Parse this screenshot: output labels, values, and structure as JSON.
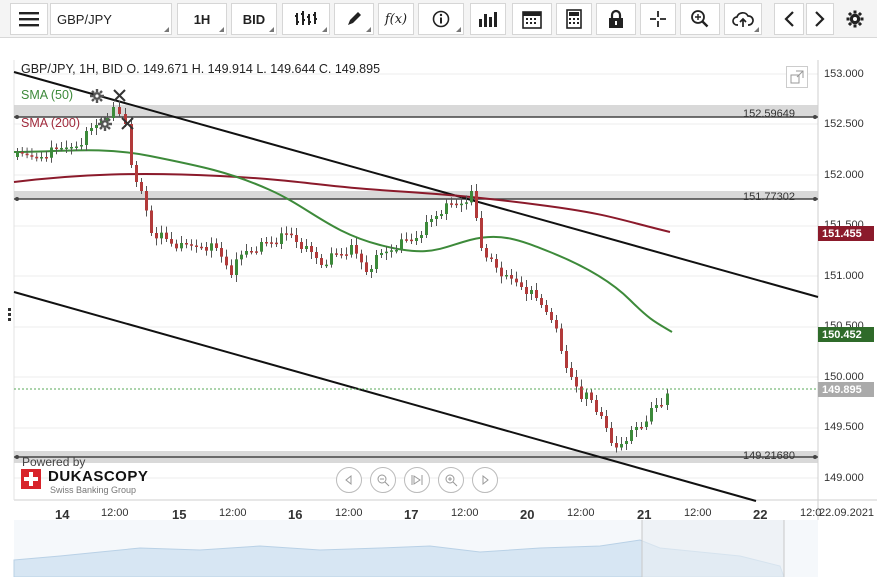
{
  "toolbar": {
    "symbol": "GBP/JPY",
    "timeframe": "1H",
    "price_type": "BID",
    "indicator_label": "f(x)"
  },
  "chart": {
    "header": "GBP/JPY, 1H, BID   O. 149.671 H. 149.914 L. 149.644 C. 149.895",
    "sma50_label": "SMA (50)",
    "sma200_label": "SMA (200)",
    "hline_labels": [
      "152.59649",
      "151.77302",
      "149.21680"
    ],
    "price_tags": [
      {
        "text": "151.455",
        "color": "#8b1a2b"
      },
      {
        "text": "150.452",
        "color": "#2f6b2a"
      },
      {
        "text": "149.895",
        "color": "#aaaaaa"
      }
    ],
    "y_axis": [
      "153.000",
      "152.500",
      "152.000",
      "151.500",
      "151.000",
      "150.500",
      "150.000",
      "149.500",
      "149.000"
    ],
    "x_axis": [
      {
        "text": "14",
        "style": "big"
      },
      {
        "text": "12:00",
        "style": "small"
      },
      {
        "text": "15",
        "style": "big"
      },
      {
        "text": "12:00",
        "style": "small"
      },
      {
        "text": "16",
        "style": "big"
      },
      {
        "text": "12:00",
        "style": "small"
      },
      {
        "text": "17",
        "style": "big"
      },
      {
        "text": "12:00",
        "style": "small"
      },
      {
        "text": "20",
        "style": "big"
      },
      {
        "text": "12:00",
        "style": "small"
      },
      {
        "text": "21",
        "style": "big"
      },
      {
        "text": "12:00",
        "style": "small"
      },
      {
        "text": "22",
        "style": "big"
      },
      {
        "text": "12:0",
        "style": "small"
      },
      {
        "text": "22.09.2021",
        "style": "small"
      }
    ],
    "powered_by": "Powered by",
    "brand": "DUKASCOPY",
    "brand_sub": "Swiss Banking Group"
  },
  "colors": {
    "sma50": "#3d8a3a",
    "sma200": "#8b1a2b",
    "bull": "#3c8a3a",
    "bear": "#b23a3a"
  },
  "icons": [
    "menu-icon",
    "bar-style-icon",
    "draw-pen-icon",
    "indicator-icon",
    "info-icon",
    "volume-icon",
    "calendar-icon",
    "calculator-icon",
    "lock-icon",
    "crosshair-icon",
    "zoom-icon",
    "cloud-upload-icon",
    "arrow-left-icon",
    "arrow-right-icon",
    "settings-icon"
  ]
}
